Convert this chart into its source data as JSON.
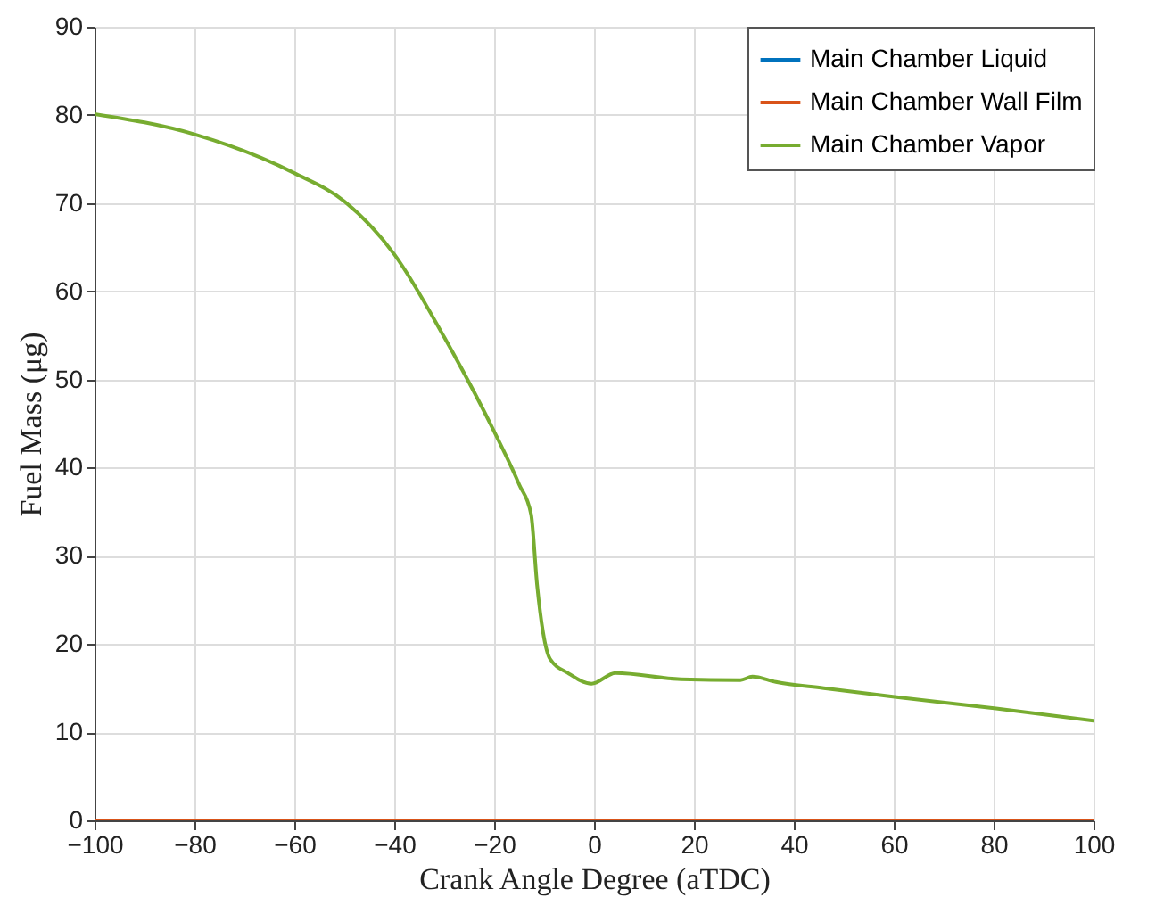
{
  "chart_data": {
    "type": "line",
    "xlabel": "Crank Angle Degree (aTDC)",
    "ylabel": "Fuel Mass (μg)",
    "xlim": [
      -100,
      100
    ],
    "ylim": [
      0,
      90
    ],
    "xticks": [
      -100,
      -80,
      -60,
      -40,
      -20,
      0,
      20,
      40,
      60,
      80,
      100
    ],
    "yticks": [
      0,
      10,
      20,
      30,
      40,
      50,
      60,
      70,
      80,
      90
    ],
    "grid": true,
    "legend": "top right",
    "marker": "none",
    "line_style": "solid",
    "series": [
      {
        "name": "Main Chamber Liquid",
        "color": "#0072bd",
        "values": [
          null,
          null
        ]
      },
      {
        "name": "Main Chamber Wall Film",
        "color": "#d95319",
        "x": [
          -100,
          100
        ],
        "values": [
          0,
          0
        ]
      },
      {
        "name": "Main Chamber Vapor",
        "color": "#77ac30",
        "x": [
          -100,
          -80,
          -60,
          -50,
          -40,
          -30,
          -20,
          -15,
          -12.6,
          -11.4,
          -10.2,
          -8.8,
          -5.2,
          -0.5,
          4.3,
          17.4,
          29.3,
          31.7,
          36.4,
          46,
          60.2,
          80.5,
          100
        ],
        "values": [
          80.1,
          77.8,
          73.4,
          70.2,
          64.2,
          54.8,
          44.1,
          38.1,
          34.7,
          26.7,
          21.3,
          18.3,
          16.7,
          15.5,
          16.7,
          16.0,
          15.9,
          16.3,
          15.7,
          15.0,
          14.0,
          12.7,
          11.3
        ]
      }
    ]
  }
}
